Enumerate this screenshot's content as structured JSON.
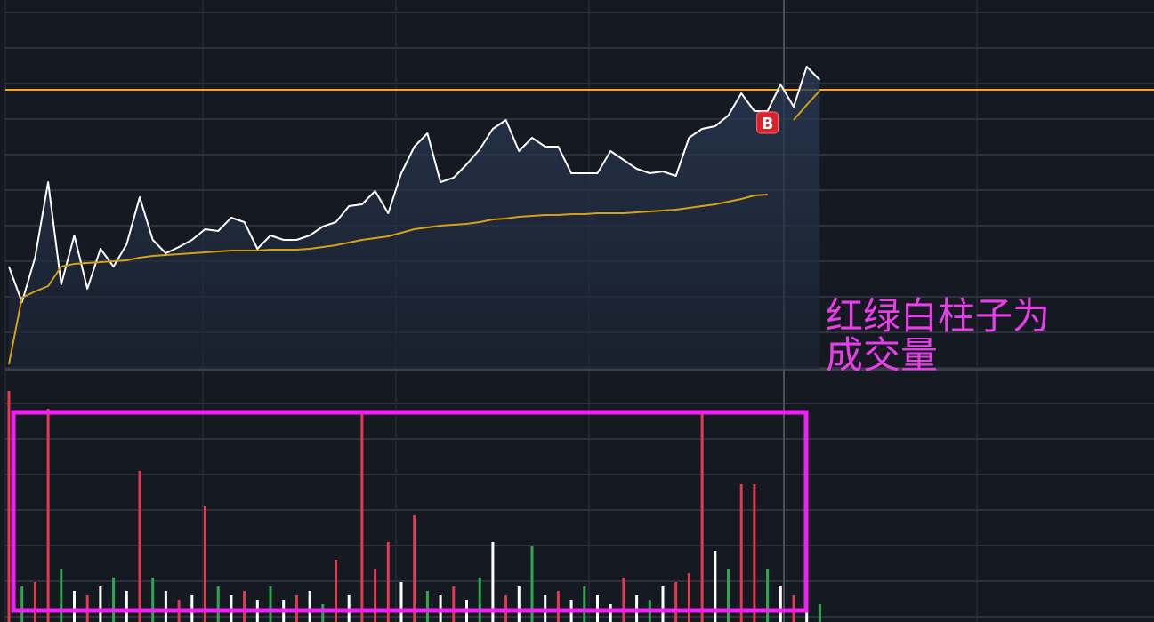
{
  "chart_data": [
    {
      "type": "line",
      "ylim": [
        0,
        415
      ],
      "reference_line": 314,
      "reference_color": "#f5a623",
      "fill": true,
      "series": [
        {
          "color": "#ffffff",
          "values": [
            115,
            75,
            125,
            210,
            95,
            150,
            90,
            135,
            115,
            140,
            193,
            145,
            130,
            137,
            145,
            157,
            155,
            170,
            165,
            135,
            150,
            145,
            145,
            150,
            160,
            165,
            183,
            185,
            200,
            175,
            220,
            250,
            265,
            210,
            215,
            230,
            247,
            270,
            280,
            245,
            260,
            250,
            250,
            220,
            220,
            220,
            245,
            235,
            225,
            220,
            222,
            217,
            260,
            270,
            273,
            285,
            310,
            290,
            290,
            320,
            295,
            340,
            325
          ]
        },
        {
          "color": "#d4a017",
          "values": [
            5,
            80,
            87,
            93,
            115,
            118,
            119,
            120,
            121,
            122,
            125,
            127,
            128,
            129,
            130,
            131,
            132,
            133,
            133,
            133,
            134,
            134,
            134,
            135,
            137,
            139,
            142,
            145,
            147,
            149,
            153,
            157,
            159,
            161,
            162,
            163,
            165,
            168,
            169,
            171,
            172,
            173,
            173,
            174,
            174,
            175,
            175,
            175,
            176,
            177,
            178,
            179,
            181,
            183,
            185,
            188,
            191,
            195,
            196,
            null,
            280,
            297,
            313
          ]
        }
      ],
      "markers": [
        {
          "label": "B",
          "x": 58,
          "y": 277,
          "color": "#d9222a"
        }
      ]
    },
    {
      "type": "bar",
      "ylim": [
        0,
        265
      ],
      "values": [
        260,
        40,
        45,
        240,
        60,
        35,
        30,
        40,
        50,
        35,
        170,
        50,
        35,
        25,
        30,
        130,
        40,
        30,
        35,
        25,
        40,
        25,
        30,
        35,
        20,
        70,
        30,
        235,
        60,
        90,
        45,
        120,
        35,
        30,
        40,
        25,
        50,
        90,
        30,
        40,
        85,
        30,
        35,
        25,
        40,
        30,
        20,
        50,
        30,
        25,
        40,
        45,
        55,
        235,
        80,
        60,
        155,
        155,
        60,
        40,
        30,
        130,
        20
      ],
      "colors": [
        "#e8384f",
        "#2ea84e",
        "#e8384f",
        "#e8384f",
        "#2ea84e",
        "#ffffff",
        "#e8384f",
        "#ffffff",
        "#2ea84e",
        "#ffffff",
        "#e8384f",
        "#2ea84e",
        "#ffffff",
        "#e8384f",
        "#ffffff",
        "#e8384f",
        "#2ea84e",
        "#ffffff",
        "#e8384f",
        "#ffffff",
        "#2ea84e",
        "#ffffff",
        "#e8384f",
        "#ffffff",
        "#2ea84e",
        "#e8384f",
        "#ffffff",
        "#e8384f",
        "#e8384f",
        "#e8384f",
        "#ffffff",
        "#e8384f",
        "#2ea84e",
        "#ffffff",
        "#e8384f",
        "#ffffff",
        "#2ea84e",
        "#ffffff",
        "#e8384f",
        "#ffffff",
        "#2ea84e",
        "#ffffff",
        "#e8384f",
        "#ffffff",
        "#2ea84e",
        "#ffffff",
        "#ffffff",
        "#e8384f",
        "#ffffff",
        "#2ea84e",
        "#ffffff",
        "#e8384f",
        "#e8384f",
        "#e8384f",
        "#ffffff",
        "#2ea84e",
        "#e8384f",
        "#e8384f",
        "#2ea84e",
        "#ffffff",
        "#e8384f",
        "#ffffff",
        "#2ea84e"
      ]
    }
  ],
  "annotation": [
    "红绿白柱子为",
    "成交量"
  ]
}
